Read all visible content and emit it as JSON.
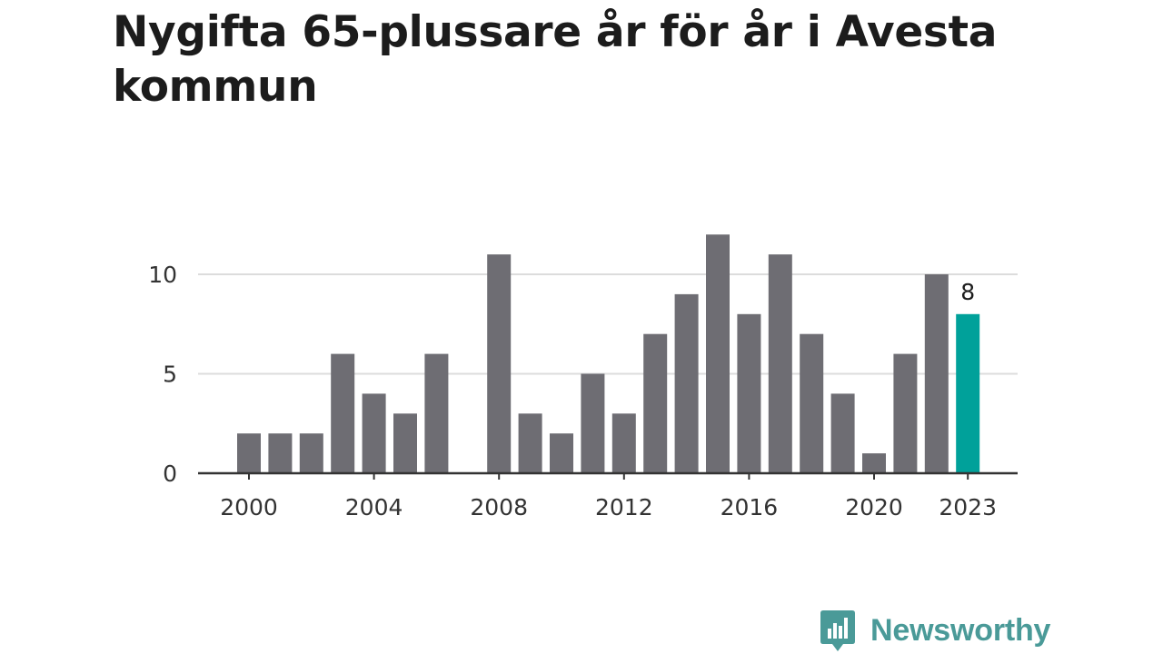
{
  "title": "Nygifta 65-plussare år för år i Avesta kommun",
  "chart_data": {
    "type": "bar",
    "title": "Nygifta 65-plussare år för år i Avesta kommun",
    "xlabel": "",
    "ylabel": "",
    "x": [
      2000,
      2001,
      2002,
      2003,
      2004,
      2005,
      2006,
      2007,
      2008,
      2009,
      2010,
      2011,
      2012,
      2013,
      2014,
      2015,
      2016,
      2017,
      2018,
      2019,
      2020,
      2021,
      2022,
      2023
    ],
    "values": [
      2,
      2,
      2,
      6,
      4,
      3,
      6,
      0,
      11,
      3,
      2,
      5,
      3,
      7,
      9,
      12,
      8,
      11,
      7,
      4,
      1,
      6,
      10,
      8
    ],
    "ylim": [
      0,
      12
    ],
    "y_ticks": [
      0,
      5,
      10
    ],
    "x_ticks": [
      2000,
      2004,
      2008,
      2012,
      2016,
      2020,
      2023
    ],
    "highlight": {
      "x": 2023,
      "label": "8"
    },
    "grid": true,
    "colors": {
      "bar": "#6e6d73",
      "highlight": "#00a19a",
      "grid": "#dcdcdc",
      "axis": "#333333"
    }
  },
  "brand": {
    "name": "Newsworthy",
    "icon": "newsworthy-logo-icon",
    "color": "#4a9a98"
  }
}
